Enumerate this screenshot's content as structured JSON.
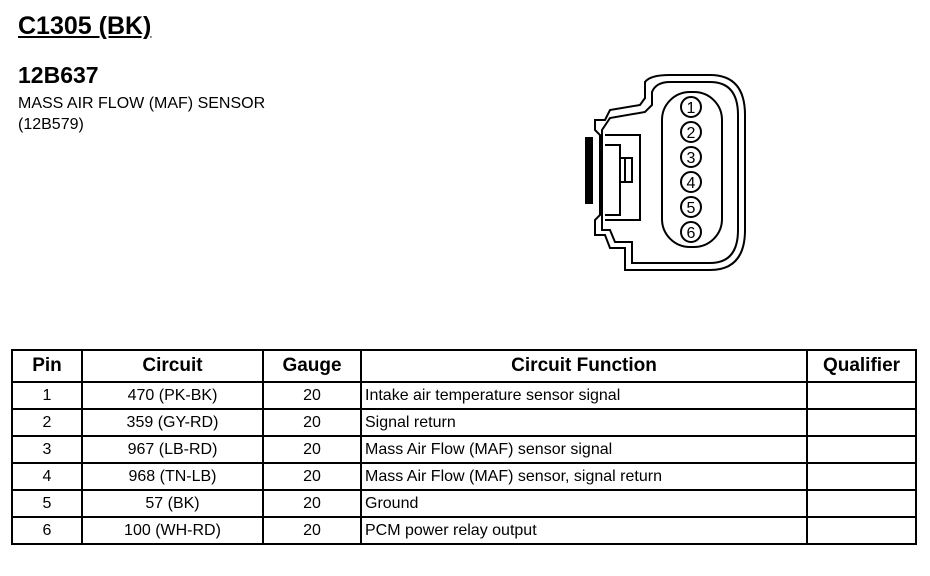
{
  "connector": "C1305 (BK)",
  "part_number": "12B637",
  "description": "MASS AIR FLOW (MAF) SENSOR",
  "sub_part": "(12B579)",
  "diagram": {
    "pins": [
      "1",
      "2",
      "3",
      "4",
      "5",
      "6"
    ]
  },
  "table": {
    "headers": [
      "Pin",
      "Circuit",
      "Gauge",
      "Circuit Function",
      "Qualifier"
    ],
    "rows": [
      {
        "pin": "1",
        "circuit": "470 (PK-BK)",
        "gauge": "20",
        "function": "Intake air temperature sensor signal",
        "qualifier": ""
      },
      {
        "pin": "2",
        "circuit": "359 (GY-RD)",
        "gauge": "20",
        "function": "Signal return",
        "qualifier": ""
      },
      {
        "pin": "3",
        "circuit": "967 (LB-RD)",
        "gauge": "20",
        "function": "Mass Air Flow (MAF) sensor signal",
        "qualifier": ""
      },
      {
        "pin": "4",
        "circuit": "968 (TN-LB)",
        "gauge": "20",
        "function": "Mass Air Flow (MAF) sensor, signal return",
        "qualifier": ""
      },
      {
        "pin": "5",
        "circuit": "57 (BK)",
        "gauge": "20",
        "function": "Ground",
        "qualifier": ""
      },
      {
        "pin": "6",
        "circuit": "100 (WH-RD)",
        "gauge": "20",
        "function": "PCM power relay output",
        "qualifier": ""
      }
    ]
  }
}
